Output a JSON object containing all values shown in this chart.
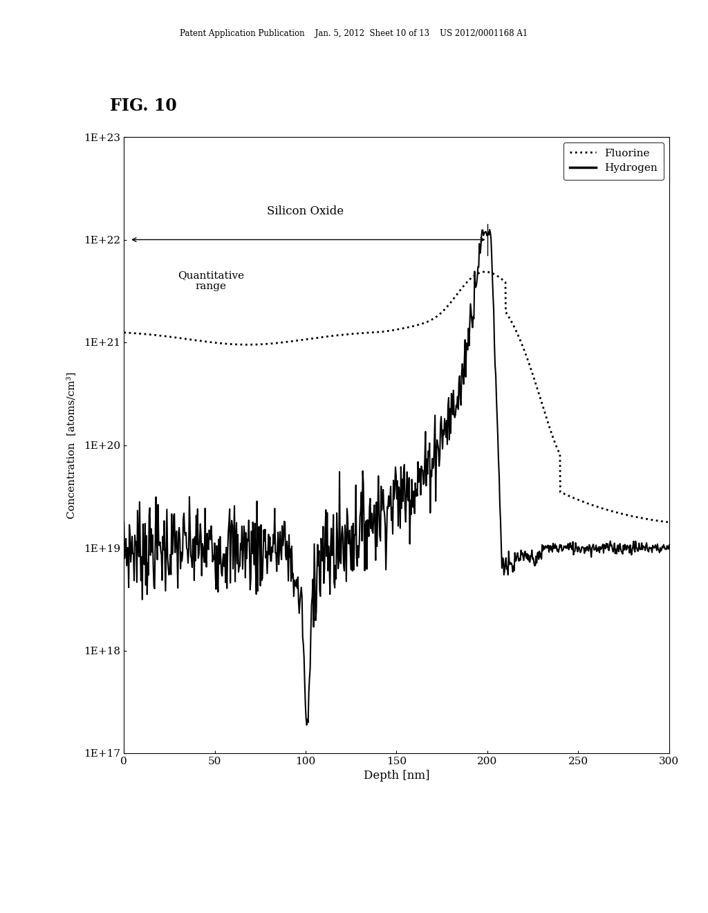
{
  "title": "FIG. 10",
  "header_text": "Patent Application Publication    Jan. 5, 2012  Sheet 10 of 13    US 2012/0001168 A1",
  "xlabel": "Depth [nm]",
  "ylabel": "Concentration  [atoms/cm³]",
  "xlim": [
    0,
    300
  ],
  "ytick_labels": [
    "1E+17",
    "1E+18",
    "1E+19",
    "1E+20",
    "1E+21",
    "1E+22",
    "1E+23"
  ],
  "xticks": [
    0,
    50,
    100,
    150,
    200,
    250,
    300
  ],
  "legend_entries": [
    "Fluorine",
    "Hydrogen"
  ],
  "silicon_oxide_label": "Silicon Oxide",
  "quantitative_label": "Quantitative\nrange",
  "background_color": "#ffffff",
  "line_color": "#000000"
}
